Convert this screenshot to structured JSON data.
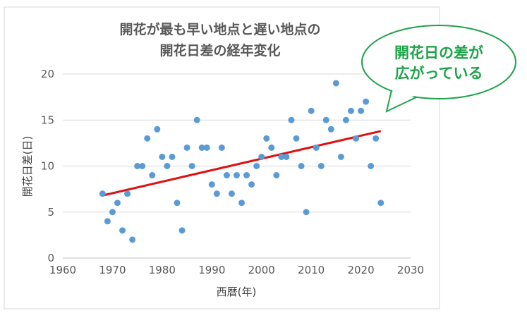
{
  "chart_data": {
    "type": "scatter",
    "title": [
      "開花が最も早い地点と遅い地点の",
      "開花日差の経年変化"
    ],
    "xlabel": "西暦(年)",
    "ylabel": "開花日差(日)",
    "xlim": [
      1960,
      2030
    ],
    "ylim": [
      0,
      20
    ],
    "xticks": [
      1960,
      1970,
      1980,
      1990,
      2000,
      2010,
      2020,
      2030
    ],
    "yticks": [
      0,
      5,
      10,
      15,
      20
    ],
    "grid": "horizontal",
    "points": [
      [
        1968,
        7
      ],
      [
        1969,
        4
      ],
      [
        1970,
        5
      ],
      [
        1971,
        6
      ],
      [
        1972,
        3
      ],
      [
        1973,
        7
      ],
      [
        1974,
        2
      ],
      [
        1975,
        10
      ],
      [
        1976,
        10
      ],
      [
        1977,
        13
      ],
      [
        1978,
        9
      ],
      [
        1979,
        14
      ],
      [
        1980,
        11
      ],
      [
        1981,
        10
      ],
      [
        1982,
        11
      ],
      [
        1983,
        6
      ],
      [
        1984,
        3
      ],
      [
        1985,
        12
      ],
      [
        1986,
        10
      ],
      [
        1987,
        15
      ],
      [
        1988,
        12
      ],
      [
        1989,
        12
      ],
      [
        1990,
        8
      ],
      [
        1991,
        7
      ],
      [
        1992,
        12
      ],
      [
        1993,
        9
      ],
      [
        1994,
        7
      ],
      [
        1995,
        9
      ],
      [
        1996,
        6
      ],
      [
        1997,
        9
      ],
      [
        1998,
        8
      ],
      [
        1999,
        10
      ],
      [
        2000,
        11
      ],
      [
        2001,
        13
      ],
      [
        2002,
        12
      ],
      [
        2003,
        9
      ],
      [
        2004,
        11
      ],
      [
        2005,
        11
      ],
      [
        2006,
        15
      ],
      [
        2007,
        13
      ],
      [
        2008,
        10
      ],
      [
        2009,
        5
      ],
      [
        2010,
        16
      ],
      [
        2011,
        12
      ],
      [
        2012,
        10
      ],
      [
        2013,
        15
      ],
      [
        2014,
        14
      ],
      [
        2015,
        19
      ],
      [
        2016,
        11
      ],
      [
        2017,
        15
      ],
      [
        2018,
        16
      ],
      [
        2019,
        13
      ],
      [
        2020,
        16
      ],
      [
        2021,
        17
      ],
      [
        2022,
        10
      ],
      [
        2023,
        13
      ],
      [
        2024,
        6
      ]
    ],
    "trendline": {
      "type": "linear",
      "from": [
        1968,
        6.8
      ],
      "to": [
        2024,
        13.8
      ]
    },
    "colors": {
      "points": "#5b9bd5",
      "trendline": "#e01010",
      "callout": "#1ea34a"
    }
  },
  "callout": {
    "lines": [
      "開花日の差が",
      "広がっている"
    ]
  }
}
